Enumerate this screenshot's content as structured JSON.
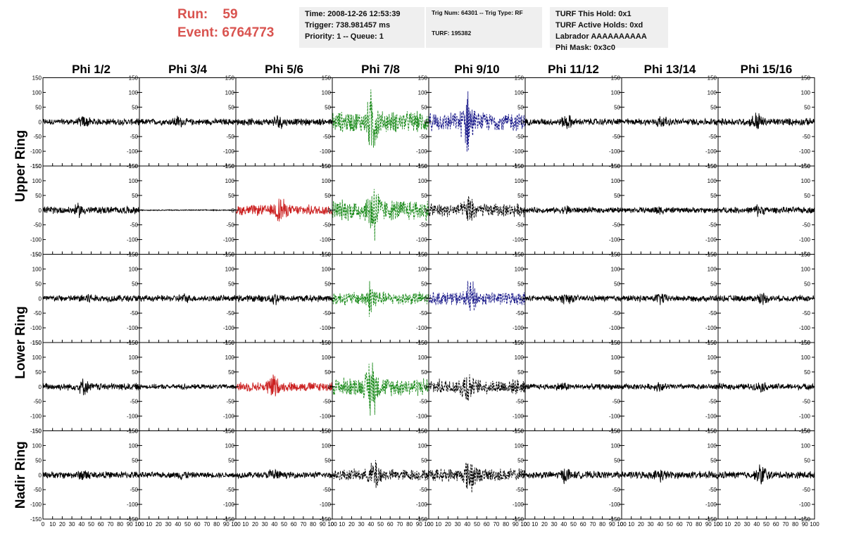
{
  "header": {
    "run_label": "Run:",
    "run_value": "59",
    "event_label": "Event:",
    "event_value": "6764773"
  },
  "info_box_1": {
    "time": "Time: 2008-12-26 12:53:39",
    "trigger": "Trigger: 738.981457 ms",
    "priority": "Priority: 1 -- Queue: 1"
  },
  "info_box_2": {
    "trig": "Trig Num: 64301 -- Trig Type: RF",
    "turf": "TURF: 195382"
  },
  "info_box_3": {
    "hold": "TURF This Hold: 0x1",
    "active": "TURF Active Holds: 0xd",
    "labrador": "Labrador AAAAAAAAAA",
    "phimask": "Phi Mask: 0x3c0"
  },
  "columns": [
    "Phi 1/2",
    "Phi 3/4",
    "Phi 5/6",
    "Phi 7/8",
    "Phi 9/10",
    "Phi 11/12",
    "Phi 13/14",
    "Phi 15/16"
  ],
  "rings": [
    "Upper Ring",
    "Lower Ring",
    "Nadir Ring"
  ],
  "colors": {
    "header_red": "#d9534f",
    "trace_black": "#000000",
    "trace_red": "#cc2222",
    "trace_green": "#1a8a1a",
    "trace_blue": "#1a1a8a",
    "info_bg": "#efefef"
  },
  "chart_data": {
    "type": "line",
    "title": "",
    "xlim": [
      0,
      100
    ],
    "ylim": [
      -150,
      150
    ],
    "x_ticks": [
      0,
      10,
      20,
      30,
      40,
      50,
      60,
      70,
      80,
      90,
      100
    ],
    "x_tick_labels": [
      "0",
      "10",
      "20",
      "30",
      "40",
      "50",
      "60",
      "70",
      "80",
      "90",
      "100"
    ],
    "y_ticks": [
      -150,
      -100,
      -50,
      0,
      50,
      100,
      150
    ],
    "y_tick_labels": [
      "-150",
      "-100",
      "-50",
      "0",
      "50",
      "100",
      "150"
    ],
    "grid": false,
    "panels": [
      {
        "row": 0,
        "col": 0,
        "color": "black",
        "style": "solid",
        "amp": 12,
        "peak": 15
      },
      {
        "row": 0,
        "col": 1,
        "color": "black",
        "style": "solid",
        "amp": 12,
        "peak": 15
      },
      {
        "row": 0,
        "col": 2,
        "color": "black",
        "style": "solid",
        "amp": 13,
        "peak": 20
      },
      {
        "row": 0,
        "col": 3,
        "color": "green",
        "style": "dashed",
        "amp": 40,
        "peak": 100
      },
      {
        "row": 0,
        "col": 4,
        "color": "blue",
        "style": "dashed",
        "amp": 35,
        "peak": 100
      },
      {
        "row": 0,
        "col": 5,
        "color": "black",
        "style": "solid",
        "amp": 13,
        "peak": 20
      },
      {
        "row": 0,
        "col": 6,
        "color": "black",
        "style": "solid",
        "amp": 13,
        "peak": 15
      },
      {
        "row": 0,
        "col": 7,
        "color": "black",
        "style": "solid",
        "amp": 14,
        "peak": 30
      },
      {
        "row": 1,
        "col": 0,
        "color": "black",
        "style": "solid",
        "amp": 14,
        "peak": 15
      },
      {
        "row": 1,
        "col": 1,
        "color": "black",
        "style": "solid",
        "amp": 2,
        "peak": 0
      },
      {
        "row": 1,
        "col": 2,
        "color": "red",
        "style": "solid",
        "amp": 20,
        "peak": 45
      },
      {
        "row": 1,
        "col": 3,
        "color": "green",
        "style": "dashed",
        "amp": 40,
        "peak": 100
      },
      {
        "row": 1,
        "col": 4,
        "color": "black",
        "style": "dashed",
        "amp": 25,
        "peak": 40
      },
      {
        "row": 1,
        "col": 5,
        "color": "black",
        "style": "solid",
        "amp": 11,
        "peak": 10
      },
      {
        "row": 1,
        "col": 6,
        "color": "black",
        "style": "solid",
        "amp": 11,
        "peak": 10
      },
      {
        "row": 1,
        "col": 7,
        "color": "black",
        "style": "solid",
        "amp": 12,
        "peak": 15
      },
      {
        "row": 2,
        "col": 0,
        "color": "black",
        "style": "solid",
        "amp": 13,
        "peak": 15
      },
      {
        "row": 2,
        "col": 1,
        "color": "black",
        "style": "solid",
        "amp": 12,
        "peak": 10
      },
      {
        "row": 2,
        "col": 2,
        "color": "black",
        "style": "solid",
        "amp": 13,
        "peak": 15
      },
      {
        "row": 2,
        "col": 3,
        "color": "green",
        "style": "dashed",
        "amp": 25,
        "peak": 55
      },
      {
        "row": 2,
        "col": 4,
        "color": "blue",
        "style": "dashed",
        "amp": 25,
        "peak": 55
      },
      {
        "row": 2,
        "col": 5,
        "color": "black",
        "style": "solid",
        "amp": 12,
        "peak": 15
      },
      {
        "row": 2,
        "col": 6,
        "color": "black",
        "style": "solid",
        "amp": 12,
        "peak": 15
      },
      {
        "row": 2,
        "col": 7,
        "color": "black",
        "style": "solid",
        "amp": 12,
        "peak": 15
      },
      {
        "row": 3,
        "col": 0,
        "color": "black",
        "style": "solid",
        "amp": 14,
        "peak": 20
      },
      {
        "row": 3,
        "col": 1,
        "color": "black",
        "style": "solid",
        "amp": 9,
        "peak": 5
      },
      {
        "row": 3,
        "col": 2,
        "color": "red",
        "style": "solid",
        "amp": 18,
        "peak": 40
      },
      {
        "row": 3,
        "col": 3,
        "color": "green",
        "style": "dashed",
        "amp": 35,
        "peak": 100
      },
      {
        "row": 3,
        "col": 4,
        "color": "black",
        "style": "dashed",
        "amp": 28,
        "peak": 50
      },
      {
        "row": 3,
        "col": 5,
        "color": "black",
        "style": "solid",
        "amp": 11,
        "peak": 10
      },
      {
        "row": 3,
        "col": 6,
        "color": "black",
        "style": "solid",
        "amp": 11,
        "peak": 10
      },
      {
        "row": 3,
        "col": 7,
        "color": "black",
        "style": "solid",
        "amp": 12,
        "peak": 10
      },
      {
        "row": 4,
        "col": 0,
        "color": "black",
        "style": "solid",
        "amp": 13,
        "peak": 15
      },
      {
        "row": 4,
        "col": 1,
        "color": "black",
        "style": "solid",
        "amp": 11,
        "peak": 10
      },
      {
        "row": 4,
        "col": 2,
        "color": "black",
        "style": "solid",
        "amp": 12,
        "peak": 20
      },
      {
        "row": 4,
        "col": 3,
        "color": "black",
        "style": "dashed",
        "amp": 22,
        "peak": 50
      },
      {
        "row": 4,
        "col": 4,
        "color": "black",
        "style": "dashed",
        "amp": 25,
        "peak": 60
      },
      {
        "row": 4,
        "col": 5,
        "color": "black",
        "style": "solid",
        "amp": 14,
        "peak": 20
      },
      {
        "row": 4,
        "col": 6,
        "color": "black",
        "style": "solid",
        "amp": 14,
        "peak": 15
      },
      {
        "row": 4,
        "col": 7,
        "color": "black",
        "style": "solid",
        "amp": 14,
        "peak": 35
      }
    ]
  }
}
